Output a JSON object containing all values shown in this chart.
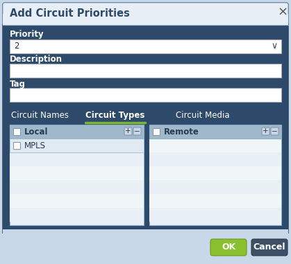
{
  "bg_color": "#c8d8e8",
  "dialog_bg": "#2e4a6a",
  "title_bar_bg": "#e8eef5",
  "title_text": "Add Circuit Priorities",
  "title_color": "#2e4a6a",
  "title_fontsize": 10.5,
  "close_x": "×",
  "close_color": "#555555",
  "field_bg": "#ffffff",
  "field_border": "#aaaaaa",
  "label_color": "#ffffff",
  "label_fontsize": 8.5,
  "priority_label": "Priority",
  "priority_value": "2",
  "description_label": "Description",
  "tag_label": "Tag",
  "tab_names": [
    "Circuit Names",
    "Circuit Types",
    "Circuit Media"
  ],
  "active_tab": 1,
  "active_tab_color": "#7cb82f",
  "tab_color": "#ffffff",
  "tab_fontsize": 8.5,
  "list_header_bg": "#a0b8cc",
  "list_bg_light": "#e8f0f5",
  "list_bg_white": "#f4f8fa",
  "list_border": "#8fafc8",
  "local_label": "Local",
  "mpls_label": "MPLS",
  "remote_label": "Remote",
  "ok_bg": "#8ac030",
  "cancel_bg": "#3d5066",
  "btn_text_color": "#ffffff",
  "btn_fontsize": 9,
  "checkbox_border": "#8899aa",
  "plus_minus_bg": "#c8d8e8",
  "plus_minus_border": "#8899aa"
}
